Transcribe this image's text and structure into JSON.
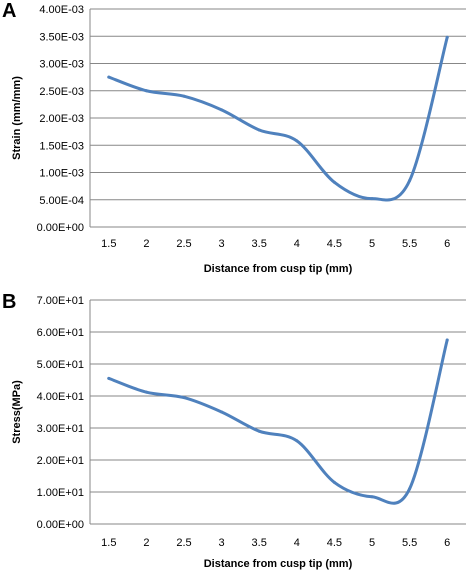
{
  "chart_data": [
    {
      "panel_label": "A",
      "type": "line",
      "xlabel": "Distance  from cusp tip (mm)",
      "ylabel": "Strain (mm/mm)",
      "categories": [
        "1.5",
        "2",
        "2.5",
        "3",
        "3.5",
        "4",
        "4.5",
        "5",
        "5.5",
        "6"
      ],
      "y_tick_labels": [
        "0.00E+00",
        "5.00E-04",
        "1.00E-03",
        "1.50E-03",
        "2.00E-03",
        "2.50E-03",
        "3.00E-03",
        "3.50E-03",
        "4.00E-03"
      ],
      "ylim": [
        0,
        0.004
      ],
      "grid": "horizontal",
      "legend": "none",
      "series_color": "#4F81BD",
      "series": [
        {
          "values": [
            0.00275,
            0.0025,
            0.0024,
            0.00215,
            0.00178,
            0.00158,
            0.00082,
            0.00052,
            0.00085,
            0.00348
          ]
        }
      ]
    },
    {
      "panel_label": "B",
      "type": "line",
      "xlabel": "Distance  from cusp tip (mm)",
      "ylabel": "Stress(MPa)",
      "categories": [
        "1.5",
        "2",
        "2.5",
        "3",
        "3.5",
        "4",
        "4.5",
        "5",
        "5.5",
        "6"
      ],
      "y_tick_labels": [
        "0.00E+00",
        "1.00E+01",
        "2.00E+01",
        "3.00E+01",
        "4.00E+01",
        "5.00E+01",
        "6.00E+01",
        "7.00E+01"
      ],
      "ylim": [
        0,
        70
      ],
      "grid": "horizontal",
      "legend": "none",
      "series_color": "#4F81BD",
      "series": [
        {
          "values": [
            45.5,
            41.2,
            39.5,
            35,
            29,
            26,
            13,
            8.5,
            11,
            57.5
          ]
        }
      ]
    }
  ]
}
